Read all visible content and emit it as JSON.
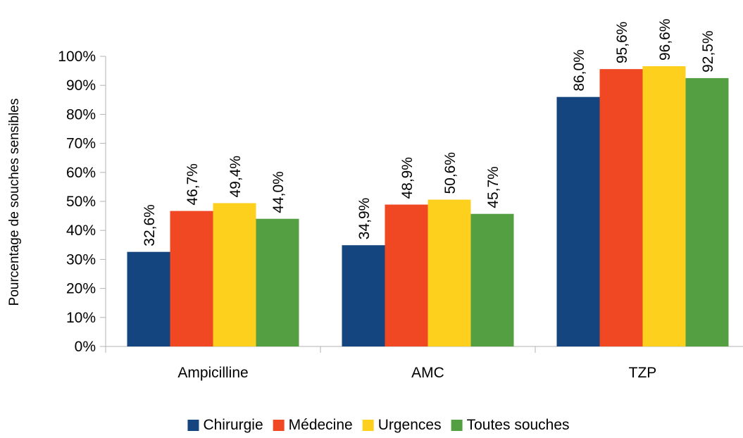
{
  "chart_data": {
    "type": "bar",
    "title": "",
    "xlabel": "",
    "ylabel": "Pourcentage de souches sensibles",
    "ylim": [
      0,
      100
    ],
    "yticks": [
      "0%",
      "10%",
      "20%",
      "30%",
      "40%",
      "50%",
      "60%",
      "70%",
      "80%",
      "90%",
      "100%"
    ],
    "grid": false,
    "legend_position": "bottom",
    "categories": [
      "Ampicilline",
      "AMC",
      "TZP"
    ],
    "series": [
      {
        "name": "Chirurgie",
        "color": "#15457f",
        "values": [
          32.6,
          34.9,
          86.0
        ],
        "labels": [
          "32,6%",
          "34,9%",
          "86,0%"
        ]
      },
      {
        "name": "Médecine",
        "color": "#ef4822",
        "values": [
          46.7,
          48.9,
          95.6
        ],
        "labels": [
          "46,7%",
          "48,9%",
          "95,6%"
        ]
      },
      {
        "name": "Urgences",
        "color": "#fdd01d",
        "values": [
          49.4,
          50.6,
          96.6
        ],
        "labels": [
          "49,4%",
          "50,6%",
          "96,6%"
        ]
      },
      {
        "name": "Toutes souches",
        "color": "#559f43",
        "values": [
          44.0,
          45.7,
          92.5
        ],
        "labels": [
          "44,0%",
          "45,7%",
          "92,5%"
        ]
      }
    ]
  }
}
